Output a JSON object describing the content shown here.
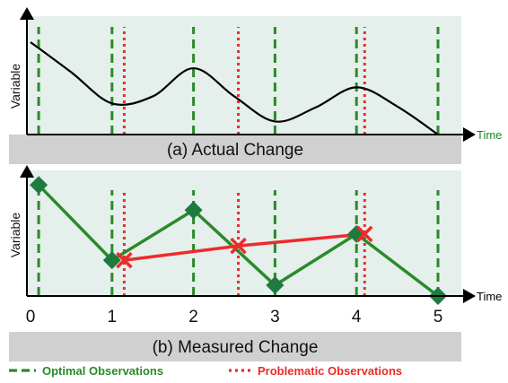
{
  "colors": {
    "panel_bg": "#e5efeb",
    "caption_bar": "#d0d0d0",
    "optimal": "#2a8a2a",
    "optimal_marker": "#1e7a3e",
    "problematic": "#ee2a2a",
    "curve": "#000000",
    "time_label_top": "#1e8a1e",
    "time_label_bottom": "#000000"
  },
  "panels": {
    "top": {
      "caption": "(a) Actual Change",
      "y_axis_label": "Variable",
      "x_axis_label": "Time"
    },
    "bottom": {
      "caption": "(b) Measured Change",
      "y_axis_label": "Variable",
      "x_axis_label": "Time"
    }
  },
  "legend": {
    "optimal": "Optimal Observations",
    "problematic": "Problematic Observations"
  },
  "chart_data": [
    {
      "type": "line",
      "panel": "top",
      "title": "(a) Actual Change",
      "xlabel": "Time",
      "ylabel": "Variable",
      "xlim": [
        0,
        5
      ],
      "ylim": [
        0,
        1
      ],
      "curve": {
        "x": [
          0,
          0.5,
          1,
          1.5,
          2,
          2.5,
          3,
          3.5,
          4,
          4.5,
          5
        ],
        "y": [
          0.92,
          0.62,
          0.31,
          0.38,
          0.66,
          0.38,
          0.13,
          0.27,
          0.47,
          0.28,
          0.0
        ]
      },
      "optimal_observations_x": [
        0.1,
        1.0,
        2.0,
        3.0,
        4.0,
        5.0
      ],
      "problematic_observations_x": [
        1.15,
        2.55,
        4.1
      ]
    },
    {
      "type": "line",
      "panel": "bottom",
      "title": "(b) Measured Change",
      "xlabel": "Time",
      "ylabel": "Variable",
      "xlim": [
        0,
        5
      ],
      "ylim": [
        0,
        1
      ],
      "x_ticks": [
        "0",
        "1",
        "2",
        "3",
        "4",
        "5"
      ],
      "series": [
        {
          "x": [
            0.1,
            1.0,
            2.0,
            3.0,
            4.0,
            5.0
          ],
          "y": [
            0.93,
            0.3,
            0.72,
            0.09,
            0.52,
            0.0
          ]
        },
        {
          "x": [
            1.15,
            2.55,
            4.1
          ],
          "y": [
            0.3,
            0.42,
            0.52
          ]
        }
      ]
    }
  ]
}
